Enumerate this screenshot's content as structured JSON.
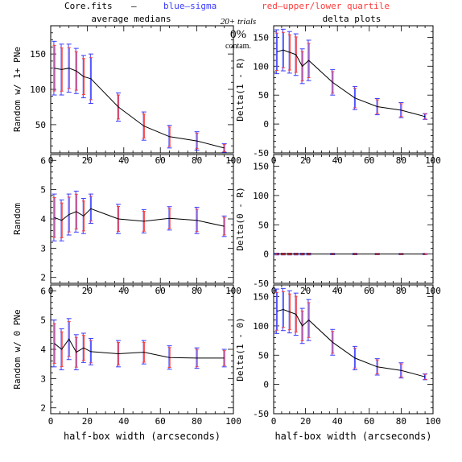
{
  "header": {
    "file": "Core.fits",
    "dash": "–",
    "blue_note": "blue–sigma",
    "red_note": "red–upper/lower quartile",
    "left_title": "average medians",
    "right_title": "delta plots",
    "trials": "20+ trials",
    "contam_pct": "0%",
    "contam_label": "contam."
  },
  "colors": {
    "line": "#000000",
    "sigma": "#3b3bff",
    "quartile": "#ff3b3b",
    "title_blue": "#3b3bff",
    "title_red": "#ff3b3b"
  },
  "chart_data": [
    {
      "id": "p1",
      "type": "line",
      "ylabel": "Random w/ 1+ PNe",
      "xlim": [
        0,
        100
      ],
      "ylim": [
        10,
        190
      ],
      "xticks": [
        0,
        20,
        40,
        60,
        80,
        100
      ],
      "yticks": [
        50,
        100,
        150
      ],
      "x": [
        2,
        6,
        10,
        14,
        18,
        22,
        37,
        51,
        65,
        80,
        95
      ],
      "y": [
        130,
        128,
        130,
        126,
        118,
        115,
        75,
        48,
        33,
        27,
        17
      ],
      "err": [
        38,
        36,
        34,
        32,
        30,
        35,
        20,
        20,
        16,
        13,
        6
      ]
    },
    {
      "id": "p2",
      "type": "line",
      "ylabel": "Delta(1 - R)",
      "xlim": [
        0,
        100
      ],
      "ylim": [
        -50,
        170
      ],
      "xticks": [
        0,
        20,
        40,
        60,
        80,
        100
      ],
      "yticks": [
        -50,
        0,
        50,
        100,
        150
      ],
      "x": [
        2,
        6,
        10,
        14,
        18,
        22,
        37,
        51,
        65,
        80,
        95
      ],
      "y": [
        125,
        128,
        124,
        120,
        100,
        110,
        72,
        45,
        30,
        24,
        13
      ],
      "err": [
        38,
        36,
        36,
        36,
        30,
        35,
        22,
        20,
        14,
        13,
        5
      ]
    },
    {
      "id": "p3",
      "type": "line",
      "ylabel": "Random",
      "xlim": [
        0,
        100
      ],
      "ylim": [
        1.8,
        6.2
      ],
      "xticks": [
        0,
        20,
        40,
        60,
        80,
        100
      ],
      "yticks": [
        2,
        3,
        4,
        5,
        6
      ],
      "x": [
        2,
        6,
        10,
        14,
        18,
        22,
        37,
        51,
        65,
        80,
        95
      ],
      "y": [
        4.05,
        3.95,
        4.15,
        4.25,
        4.1,
        4.35,
        4.0,
        3.92,
        4.02,
        3.95,
        3.75
      ],
      "err": [
        0.8,
        0.7,
        0.7,
        0.7,
        0.6,
        0.5,
        0.5,
        0.4,
        0.4,
        0.45,
        0.35
      ]
    },
    {
      "id": "p4",
      "type": "line",
      "ylabel": "Delta(0 - R)",
      "xlim": [
        0,
        100
      ],
      "ylim": [
        -50,
        170
      ],
      "xticks": [
        0,
        20,
        40,
        60,
        80,
        100
      ],
      "yticks": [
        -50,
        0,
        50,
        100,
        150
      ],
      "x": [
        2,
        6,
        10,
        14,
        18,
        22,
        37,
        51,
        65,
        80,
        95
      ],
      "y": [
        0,
        0,
        0,
        0,
        0,
        0,
        0,
        0,
        0,
        0,
        0
      ],
      "err": [
        1.5,
        1.5,
        1.5,
        1.5,
        1.5,
        1.5,
        1.2,
        1.2,
        1,
        1,
        1
      ]
    },
    {
      "id": "p5",
      "type": "line",
      "ylabel": "Random w/ 0 PNe",
      "xlim": [
        0,
        100
      ],
      "ylim": [
        1.8,
        6.2
      ],
      "xticks": [
        0,
        20,
        40,
        60,
        80,
        100
      ],
      "yticks": [
        2,
        3,
        4,
        5,
        6
      ],
      "xlabel": "half-box width (arcseconds)",
      "x": [
        2,
        6,
        10,
        14,
        18,
        22,
        37,
        51,
        65,
        80,
        95
      ],
      "y": [
        4.2,
        4.0,
        4.35,
        3.9,
        4.05,
        3.92,
        3.85,
        3.9,
        3.72,
        3.7,
        3.7
      ],
      "err": [
        0.8,
        0.7,
        0.7,
        0.6,
        0.5,
        0.45,
        0.45,
        0.4,
        0.4,
        0.35,
        0.3
      ]
    },
    {
      "id": "p6",
      "type": "line",
      "ylabel": "Delta(1 - 0)",
      "xlim": [
        0,
        100
      ],
      "ylim": [
        -50,
        170
      ],
      "xticks": [
        0,
        20,
        40,
        60,
        80,
        100
      ],
      "yticks": [
        -50,
        0,
        50,
        100,
        150
      ],
      "xlabel": "half-box width (arcseconds)",
      "x": [
        2,
        6,
        10,
        14,
        18,
        22,
        37,
        51,
        65,
        80,
        95
      ],
      "y": [
        125,
        128,
        124,
        120,
        100,
        110,
        72,
        45,
        30,
        24,
        13
      ],
      "err": [
        38,
        36,
        36,
        36,
        30,
        35,
        22,
        20,
        14,
        13,
        5
      ]
    }
  ]
}
